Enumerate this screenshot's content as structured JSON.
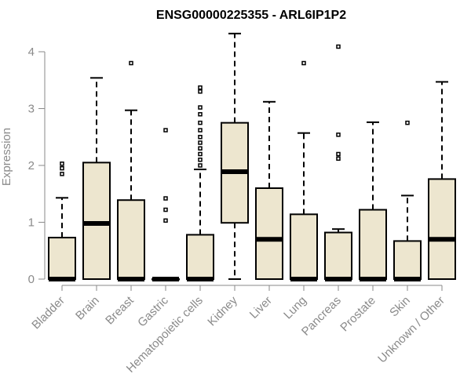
{
  "chart_data": {
    "type": "boxplot",
    "title": "ENSG00000225355 - ARL6IP1P2",
    "ylabel": "Expression",
    "xlabel": "",
    "ylim": [
      0,
      4.4
    ],
    "yticks": [
      0,
      1,
      2,
      3,
      4
    ],
    "categories": [
      "Bladder",
      "Brain",
      "Breast",
      "Gastric",
      "Hematopoietic cells",
      "Kidney",
      "Liver",
      "Lung",
      "Pancreas",
      "Prostate",
      "Skin",
      "Unknown / Other"
    ],
    "box_color": "#ede6cf",
    "boxes": [
      {
        "q1": 0,
        "median": 0,
        "q3": 0.73,
        "whisker_low": 0,
        "whisker_high": 1.43,
        "outliers": [
          1.85,
          1.95,
          2.03
        ]
      },
      {
        "q1": 0,
        "median": 0.98,
        "q3": 2.05,
        "whisker_low": 0,
        "whisker_high": 3.54,
        "outliers": []
      },
      {
        "q1": 0,
        "median": 0,
        "q3": 1.39,
        "whisker_low": 0,
        "whisker_high": 2.97,
        "outliers": [
          3.8
        ]
      },
      {
        "q1": 0,
        "median": 0,
        "q3": 0,
        "whisker_low": 0,
        "whisker_high": 0,
        "outliers": [
          1.03,
          1.22,
          1.42,
          2.62
        ]
      },
      {
        "q1": 0,
        "median": 0,
        "q3": 0.78,
        "whisker_low": 0,
        "whisker_high": 1.93,
        "outliers": [
          2.0,
          2.1,
          2.2,
          2.3,
          2.4,
          2.5,
          2.62,
          2.75,
          2.9,
          3.02,
          3.3,
          3.37
        ]
      },
      {
        "q1": 0.99,
        "median": 1.89,
        "q3": 2.75,
        "whisker_low": 0,
        "whisker_high": 4.32,
        "outliers": []
      },
      {
        "q1": 0,
        "median": 0.7,
        "q3": 1.6,
        "whisker_low": 0,
        "whisker_high": 3.12,
        "outliers": []
      },
      {
        "q1": 0,
        "median": 0,
        "q3": 1.14,
        "whisker_low": 0,
        "whisker_high": 2.57,
        "outliers": [
          3.8
        ]
      },
      {
        "q1": 0,
        "median": 0,
        "q3": 0.82,
        "whisker_low": 0,
        "whisker_high": 0.88,
        "outliers": [
          2.12,
          2.2,
          2.54,
          4.09
        ]
      },
      {
        "q1": 0,
        "median": 0,
        "q3": 1.22,
        "whisker_low": 0,
        "whisker_high": 2.76,
        "outliers": []
      },
      {
        "q1": 0,
        "median": 0,
        "q3": 0.67,
        "whisker_low": 0,
        "whisker_high": 1.47,
        "outliers": [
          2.75
        ]
      },
      {
        "q1": 0,
        "median": 0.7,
        "q3": 1.76,
        "whisker_low": 0,
        "whisker_high": 3.47,
        "outliers": []
      }
    ]
  }
}
